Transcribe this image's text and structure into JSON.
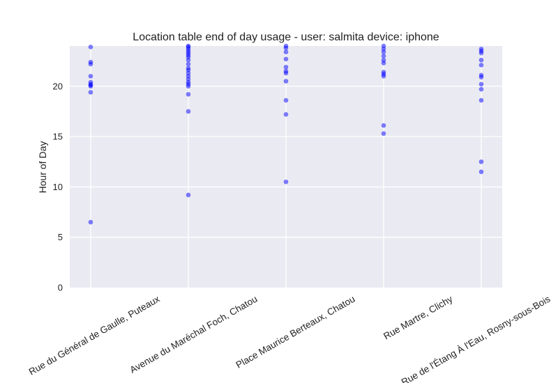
{
  "chart_data": {
    "type": "scatter",
    "title": "Location table end of day usage -  user: salmita device: iphone",
    "xlabel": "",
    "ylabel": "Hour of Day",
    "ylim": [
      0,
      24
    ],
    "yticks": [
      0,
      5,
      10,
      15,
      20
    ],
    "grid": true,
    "colors": {
      "background": "#eaeaf2",
      "grid": "#ffffff",
      "point": "#0000ff",
      "text": "#222222"
    },
    "categories": [
      "Rue du Général de Gaulle, Puteaux",
      "Avenue du Maréchal Foch, Chatou",
      "Place Maurice Berteaux, Chatou",
      "Rue Martre, Clichy",
      "Rue de l'Étang À l'Eau, Rosny-sous-Bois"
    ],
    "points": [
      [
        6.5,
        19.4,
        20.0,
        20.1,
        20.2,
        20.4,
        21.0,
        22.2,
        22.4,
        23.9
      ],
      [
        9.2,
        17.5,
        19.2,
        20.0,
        20.2,
        20.4,
        20.7,
        21.0,
        21.3,
        21.6,
        21.8,
        22.2,
        22.6,
        22.9,
        23.1,
        23.3,
        23.5,
        23.7,
        23.9,
        24.0
      ],
      [
        10.5,
        17.2,
        18.6,
        20.5,
        21.3,
        21.5,
        21.9,
        22.7,
        23.4,
        23.8,
        24.0
      ],
      [
        15.3,
        16.1,
        21.0,
        21.2,
        21.4,
        22.3,
        22.6,
        23.0,
        23.4,
        23.7,
        24.0
      ],
      [
        11.5,
        12.5,
        18.6,
        19.7,
        20.2,
        20.9,
        21.1,
        22.1,
        22.6,
        23.3,
        23.5,
        23.7
      ]
    ]
  }
}
